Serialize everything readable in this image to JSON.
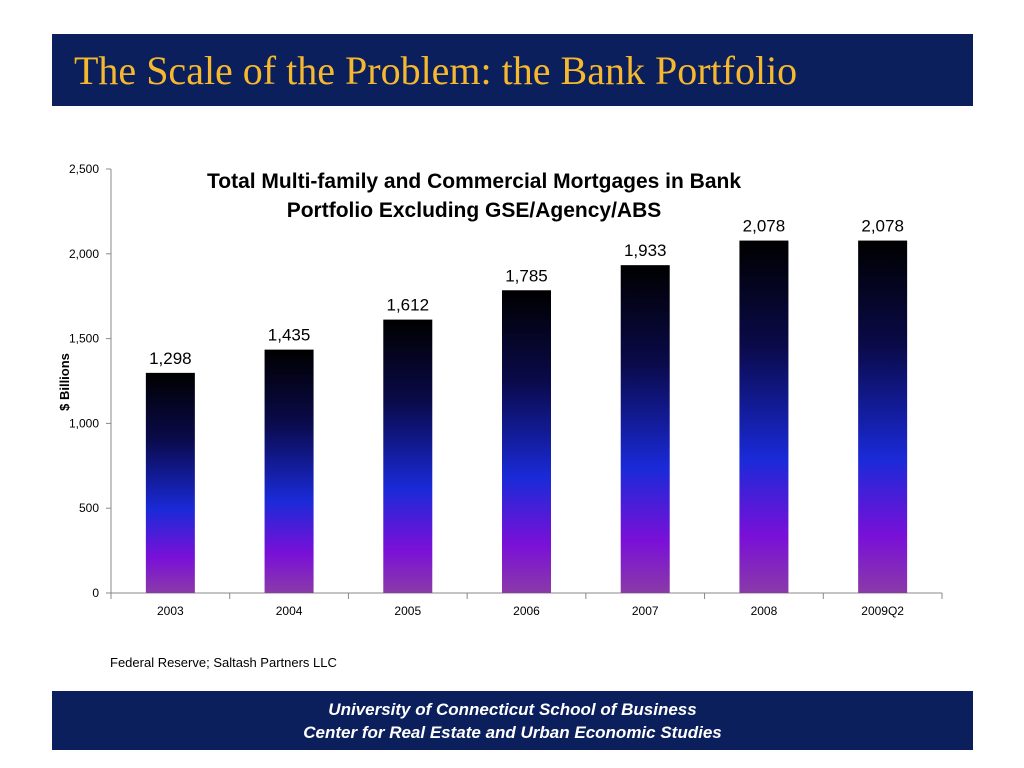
{
  "slide": {
    "title": "The Scale of the Problem: the Bank Portfolio",
    "source": "Federal Reserve; Saltash Partners LLC",
    "footer": {
      "line1": "University of Connecticut School of Business",
      "line2": "Center for Real Estate and Urban Economic Studies"
    },
    "header_color": "#0b1f5c",
    "title_color": "#f5b82e"
  },
  "chart_data": {
    "type": "bar",
    "title_lines": [
      "Total Multi-family and Commercial Mortgages in Bank",
      "Portfolio Excluding GSE/Agency/ABS"
    ],
    "categories": [
      "2003",
      "2004",
      "2005",
      "2006",
      "2007",
      "2008",
      "2009Q2"
    ],
    "values": [
      1298,
      1435,
      1612,
      1785,
      1933,
      2078,
      2078
    ],
    "value_labels": [
      "1,298",
      "1,435",
      "1,612",
      "1,785",
      "1,933",
      "2,078",
      "2,078"
    ],
    "ylabel": "$ Billions",
    "ylim": [
      0,
      2500
    ],
    "yticks": [
      0,
      500,
      1000,
      1500,
      2000,
      2500
    ],
    "ytick_labels": [
      "0",
      "500",
      "1,000",
      "1,500",
      "2,000",
      "2,500"
    ],
    "grid": false,
    "legend": "none",
    "bar_gradient": [
      "#000000",
      "#0a0a4a",
      "#1a2ad8",
      "#7a10d8",
      "#8a3aa8"
    ]
  }
}
